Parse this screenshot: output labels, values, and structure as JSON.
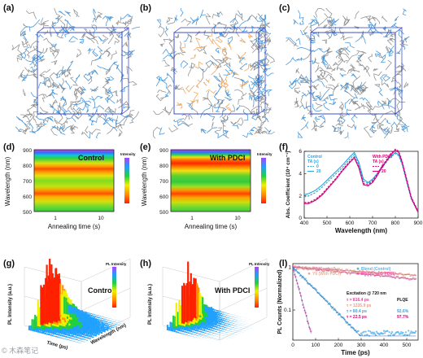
{
  "panels": {
    "a": {
      "label": "(a)"
    },
    "b": {
      "label": "(b)"
    },
    "c": {
      "label": "(c)"
    },
    "d": {
      "label": "(d)",
      "title": "Control",
      "ylabel": "Wavelength (nm)",
      "xlabel": "Annealing time (s)",
      "yticks": [
        "900",
        "800",
        "700",
        "600",
        "500"
      ],
      "xticks": [
        "1",
        "10"
      ],
      "cbar_label": "Intensity"
    },
    "e": {
      "label": "(e)",
      "title": "With PDCI",
      "ylabel": "Wavelength (nm)",
      "xlabel": "Annealing time (s)",
      "yticks": [
        "900",
        "800",
        "700",
        "600",
        "500"
      ],
      "xticks": [
        "1",
        "10"
      ],
      "cbar_label": "Intensity"
    },
    "f": {
      "label": "(f)"
    },
    "g": {
      "label": "(g)",
      "title": "Control",
      "zlabel": "PL Intensity (a.u.)",
      "xlabel": "Time (ps)",
      "ylabel": "Wavelength (nm)",
      "cbar_label": "PL Intensity"
    },
    "h": {
      "label": "(h)",
      "title": "With PDCI",
      "zlabel": "PL Intensity (a.u.)",
      "cbar_label": "PL Intensity"
    },
    "l": {
      "label": "(l)"
    }
  },
  "chart_data": [
    {
      "type": "line",
      "panel": "f",
      "xlabel": "Wavelength (nm)",
      "ylabel": "Abs. Coefficient (10⁴ cm⁻¹)",
      "xlim": [
        400,
        900
      ],
      "ylim": [
        0,
        6
      ],
      "xticks": [
        400,
        500,
        600,
        700,
        800,
        900
      ],
      "yticks": [
        0,
        2,
        4,
        6
      ],
      "legend_groups": [
        {
          "title": "Control",
          "subtitle": "TA (s)",
          "color": "#29a3e0",
          "entries": [
            "0",
            "20"
          ]
        },
        {
          "title": "With PDCI",
          "subtitle": "TA (s)",
          "color": "#d6007a",
          "entries": [
            "0",
            "20"
          ]
        }
      ],
      "series": [
        {
          "name": "0",
          "group": "Control",
          "dashed": true,
          "color": "#29a3e0",
          "x": [
            400,
            420,
            450,
            480,
            510,
            540,
            570,
            600,
            620,
            640,
            660,
            680,
            700,
            720,
            740,
            760,
            780,
            800,
            815,
            830,
            850,
            870,
            900
          ],
          "y": [
            1.9,
            2.0,
            2.3,
            2.8,
            3.4,
            4.0,
            4.6,
            5.3,
            5.7,
            4.8,
            3.3,
            3.1,
            3.4,
            3.9,
            4.5,
            5.0,
            5.5,
            5.8,
            5.6,
            4.8,
            3.2,
            1.7,
            0.5
          ]
        },
        {
          "name": "20",
          "group": "Control",
          "dashed": false,
          "color": "#29a3e0",
          "x": [
            400,
            420,
            450,
            480,
            510,
            540,
            570,
            600,
            620,
            640,
            660,
            680,
            700,
            720,
            740,
            760,
            780,
            800,
            815,
            830,
            850,
            870,
            900
          ],
          "y": [
            2.1,
            2.2,
            2.5,
            3.0,
            3.6,
            4.2,
            4.8,
            5.5,
            5.9,
            5.0,
            3.5,
            3.2,
            3.5,
            4.0,
            4.6,
            5.1,
            5.6,
            5.9,
            5.7,
            4.9,
            3.3,
            1.8,
            0.6
          ]
        },
        {
          "name": "0",
          "group": "With PDCI",
          "dashed": true,
          "color": "#d6007a",
          "x": [
            400,
            420,
            450,
            480,
            510,
            540,
            570,
            600,
            620,
            640,
            660,
            680,
            700,
            720,
            740,
            760,
            780,
            800,
            815,
            830,
            850,
            870,
            900
          ],
          "y": [
            1.4,
            1.4,
            1.7,
            2.2,
            2.9,
            3.6,
            4.4,
            5.1,
            5.5,
            4.6,
            3.1,
            3.0,
            3.3,
            3.9,
            4.6,
            5.2,
            5.8,
            6.2,
            6.0,
            5.1,
            3.5,
            1.9,
            0.6
          ]
        },
        {
          "name": "20",
          "group": "With PDCI",
          "dashed": false,
          "color": "#d6007a",
          "x": [
            400,
            420,
            450,
            480,
            510,
            540,
            570,
            600,
            620,
            640,
            660,
            680,
            700,
            720,
            740,
            760,
            780,
            800,
            815,
            830,
            850,
            870,
            900
          ],
          "y": [
            1.3,
            1.3,
            1.6,
            2.1,
            2.8,
            3.5,
            4.3,
            5.0,
            5.4,
            4.5,
            3.0,
            2.9,
            3.2,
            3.8,
            4.5,
            5.1,
            5.7,
            6.1,
            5.9,
            5.0,
            3.4,
            1.8,
            0.5
          ]
        }
      ]
    },
    {
      "type": "scatter",
      "panel": "l",
      "xlabel": "Time (ps)",
      "ylabel": "PL Counts (Normalized)",
      "xlim": [
        0,
        550
      ],
      "ylim": [
        0.02,
        1.2
      ],
      "yscale": "log",
      "xticks": [
        0,
        100,
        200,
        300,
        400,
        500
      ],
      "ytick_labels": [
        "1",
        "0.1"
      ],
      "annotation_title": "Excitation @ 720 nm",
      "plqe_header": "PLQE",
      "annotations": [
        {
          "tau": "τ = 816.4 ps",
          "color": "#e0449a",
          "plqe": ""
        },
        {
          "tau": "τ = 1235.9 ps",
          "color": "#e8a080",
          "plqe": ""
        },
        {
          "tau": "τ = 80.4 ps",
          "color": "#3aa0dc",
          "plqe": "92.6%"
        },
        {
          "tau": "τ = 22.5 ps",
          "color": "#d6007a",
          "plqe": "97.7%"
        }
      ],
      "series": [
        {
          "name": "Y6 (Control)",
          "color": "#d98bb0",
          "tau": 816.4
        },
        {
          "name": "Y6 (With PDCI)",
          "color": "#f0b090",
          "tau": 1235.9
        },
        {
          "name": "Blend (Control)",
          "color": "#5ab4e8",
          "tau": 80.4
        },
        {
          "name": "Blend (with PDCI)",
          "color": "#ff4fb0",
          "tau": 22.5
        }
      ]
    }
  ],
  "watermark": "© 木森笔记"
}
